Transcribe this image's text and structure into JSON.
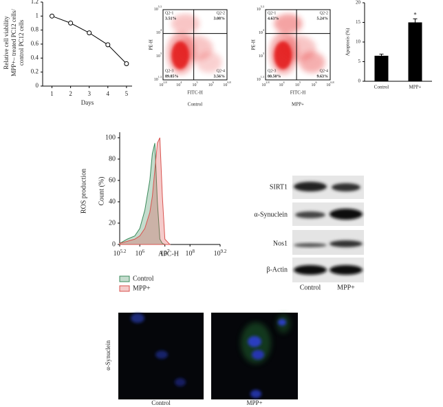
{
  "chart_data": [
    {
      "type": "line",
      "y_label": [
        "Relative cell viability",
        "MPP+– treated PC12 cells/",
        "control PC12 cells"
      ],
      "x_label": "Days",
      "x": [
        1,
        2,
        3,
        4,
        5
      ],
      "values": [
        1,
        0.9,
        0.76,
        0.59,
        0.32
      ],
      "color": "#000000",
      "xlim": [
        0.5,
        5.3
      ],
      "xticks": [
        1,
        2,
        3,
        4,
        5
      ],
      "ylim": [
        0,
        1.2
      ],
      "yticks": [
        0,
        0.2,
        0.4,
        0.6,
        0.8,
        1,
        1.2
      ]
    },
    {
      "type": "bar",
      "y_label": "Apoptosis (%)",
      "categories": [
        "Control",
        "MPP+"
      ],
      "values": [
        6.5,
        15
      ],
      "errors": [
        0.4,
        0.9
      ],
      "color": "#000000",
      "ylim": [
        0,
        20
      ],
      "yticks": [
        0,
        5,
        10,
        15,
        20
      ],
      "annotations": [
        {
          "text": "*",
          "x": "MPP+"
        }
      ]
    },
    {
      "type": "area",
      "panel_label": "ROS production",
      "y_label": "Count (%)",
      "x_label": "APC-H",
      "x": [
        5.2,
        5.5,
        5.8,
        6.0,
        6.2,
        6.4,
        6.5,
        6.6,
        6.7,
        6.8,
        6.9,
        7.0,
        7.2
      ],
      "series": [
        {
          "name": "Control",
          "color": "#3a8a5a",
          "values": [
            1,
            5,
            8,
            15,
            32,
            60,
            85,
            95,
            40,
            5,
            1,
            0,
            0
          ]
        },
        {
          "name": "MPP+",
          "color": "#d9534f",
          "values": [
            1,
            3,
            5,
            8,
            15,
            30,
            45,
            70,
            95,
            100,
            45,
            5,
            0
          ]
        }
      ],
      "xlim": [
        5.2,
        9.2
      ],
      "xticks": [
        {
          "value": 5.2,
          "label": "10",
          "sup": "5.2"
        },
        {
          "value": 6,
          "label": "10",
          "sup": "6"
        },
        {
          "value": 7,
          "label": "10",
          "sup": "7"
        },
        {
          "value": 8,
          "label": "10",
          "sup": "8"
        },
        {
          "value": 9.2,
          "label": "10",
          "sup": "9.2"
        }
      ],
      "ylim": [
        0,
        100
      ],
      "yticks": [
        0,
        20,
        40,
        60,
        80,
        100
      ],
      "legend": "bottom-left"
    }
  ],
  "flow_plots": [
    {
      "caption": "Control",
      "y_label": "PE-H",
      "x_label": "FITC-H",
      "quadrants": [
        {
          "name": "Q2-1",
          "value": "3.51%"
        },
        {
          "name": "Q2-2",
          "value": "3.08%"
        },
        {
          "name": "Q2-3",
          "value": "89.85%"
        },
        {
          "name": "Q2-4",
          "value": "3.56%"
        }
      ],
      "xticks": [
        {
          "base": "10",
          "exp": "2.8"
        },
        {
          "base": "10",
          "exp": "4"
        },
        {
          "base": "10",
          "exp": "5"
        },
        {
          "base": "10",
          "exp": "6"
        },
        {
          "base": "10",
          "exp": "6.8"
        }
      ],
      "yticks": [
        {
          "base": "10",
          "exp": "1.3"
        },
        {
          "base": "10",
          "exp": "3"
        },
        {
          "base": "10",
          "exp": "4"
        },
        {
          "base": "10",
          "exp": "5.3"
        }
      ]
    },
    {
      "caption": "MPP+",
      "y_label": "PE-H",
      "x_label": "FITC-H",
      "quadrants": [
        {
          "name": "Q2-1",
          "value": "4.63%"
        },
        {
          "name": "Q2-2",
          "value": "5.24%"
        },
        {
          "name": "Q2-3",
          "value": "80.50%"
        },
        {
          "name": "Q2-4",
          "value": "9.63%"
        }
      ],
      "xticks": [
        {
          "base": "10",
          "exp": "2.8"
        },
        {
          "base": "10",
          "exp": "4"
        },
        {
          "base": "10",
          "exp": "5"
        },
        {
          "base": "10",
          "exp": "6"
        },
        {
          "base": "10",
          "exp": "6.8"
        }
      ],
      "yticks": [
        {
          "base": "10",
          "exp": "1.3"
        },
        {
          "base": "10",
          "exp": "3"
        },
        {
          "base": "10",
          "exp": "4"
        },
        {
          "base": "10",
          "exp": "5.3"
        }
      ]
    }
  ],
  "western_blot": {
    "rows": [
      "SIRT1",
      "α-Synuclein",
      "Nos1",
      "β-Actin"
    ],
    "lanes": [
      "Control",
      "MPP+"
    ]
  },
  "microscopy": {
    "row_label": "α-Synuclein",
    "captions": [
      "Control",
      "MPP+"
    ]
  }
}
